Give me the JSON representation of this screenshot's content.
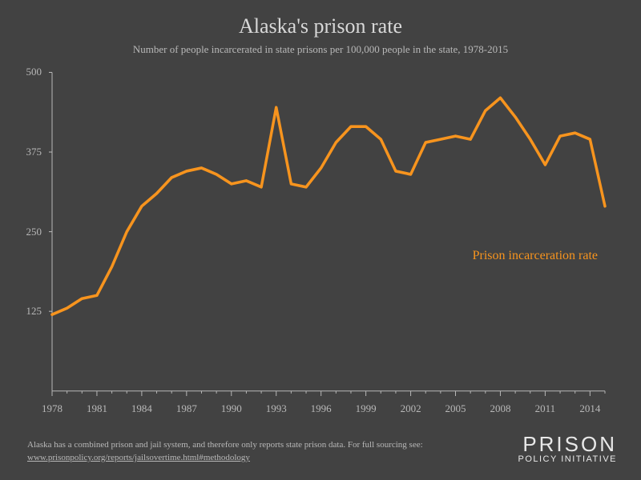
{
  "title": "Alaska's prison rate",
  "subtitle": "Number of people incarcerated in state prisons per 100,000 people in the state, 1978-2015",
  "chart": {
    "type": "line",
    "background_color": "#424242",
    "text_color": "#b8b8b8",
    "line_color": "#f7941e",
    "line_width": 3.5,
    "axis_color": "#b8b8b8",
    "tick_color": "#b8b8b8",
    "ylim": [
      0,
      500
    ],
    "yticks": [
      125,
      250,
      375,
      500
    ],
    "xlim": [
      1978,
      2015
    ],
    "xticks": [
      1978,
      1981,
      1984,
      1987,
      1990,
      1993,
      1996,
      1999,
      2002,
      2005,
      2008,
      2011,
      2014
    ],
    "series_label": "Prison incarceration rate",
    "series_label_color": "#f7941e",
    "series_label_fontsize": 16,
    "title_fontsize": 26,
    "subtitle_fontsize": 13,
    "tick_fontsize": 13,
    "years": [
      1978,
      1979,
      1980,
      1981,
      1982,
      1983,
      1984,
      1985,
      1986,
      1987,
      1988,
      1989,
      1990,
      1991,
      1992,
      1993,
      1994,
      1995,
      1996,
      1997,
      1998,
      1999,
      2000,
      2001,
      2002,
      2003,
      2004,
      2005,
      2006,
      2007,
      2008,
      2009,
      2010,
      2011,
      2012,
      2013,
      2014,
      2015
    ],
    "values": [
      120,
      130,
      145,
      150,
      195,
      250,
      290,
      310,
      335,
      345,
      350,
      340,
      325,
      330,
      320,
      445,
      325,
      320,
      350,
      390,
      415,
      415,
      395,
      345,
      340,
      390,
      395,
      400,
      395,
      440,
      460,
      430,
      395,
      355,
      400,
      405,
      395,
      290
    ]
  },
  "footnote_text": "Alaska has a combined prison and jail system, and therefore only reports state prison data. For full sourcing see:",
  "footnote_link": "www.prisonpolicy.org/reports/jailsovertime.html#methodology",
  "logo_top": "PRISON",
  "logo_bottom": "POLICY INITIATIVE"
}
